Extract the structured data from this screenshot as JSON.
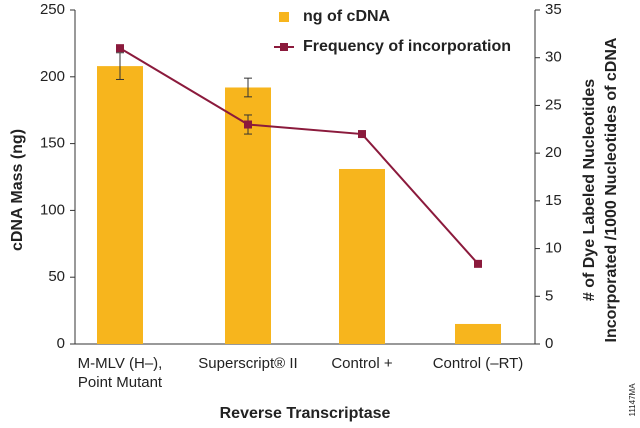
{
  "chart_data": {
    "type": "bar",
    "xlabel": "Reverse Transcriptase",
    "ylabel": "cDNA Mass (ng)",
    "y2label": [
      "# of Dye Labeled Nucleotides",
      "Incorporated /1000 Nucleotides of cDNA"
    ],
    "categories": [
      "M-MLV (H–),\nPoint Mutant",
      "Superscript® II",
      "Control +",
      "Control (–RT)"
    ],
    "series": [
      {
        "name": "ng of cDNA",
        "type": "bar",
        "color": "#f7b51d",
        "axis": "y",
        "values": [
          208,
          192,
          131,
          15
        ],
        "errors": [
          10,
          7,
          null,
          null
        ]
      },
      {
        "name": "Frequency of incorporation",
        "type": "line",
        "color": "#8b1a3c",
        "axis": "y2",
        "values": [
          31,
          23,
          22,
          8.4
        ],
        "errors": [
          null,
          1,
          null,
          null
        ]
      }
    ],
    "ylim": [
      0,
      250
    ],
    "yticks": [
      0,
      50,
      100,
      150,
      200,
      250
    ],
    "y2lim": [
      0,
      35
    ],
    "y2ticks": [
      0,
      5,
      10,
      15,
      20,
      25,
      30,
      35
    ],
    "grid": false,
    "watermark": "11147MA"
  }
}
